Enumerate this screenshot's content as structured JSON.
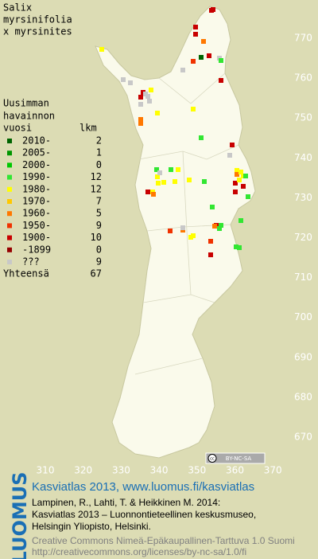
{
  "title": [
    "Salix",
    "myrsinifolia",
    "x myrsinites"
  ],
  "legend": {
    "header": [
      "Uusimman",
      "havainnon",
      "vuosi"
    ],
    "count_header": "lkm",
    "rows": [
      {
        "label": "2010-",
        "count": 2,
        "color": "#006400"
      },
      {
        "label": "2005-",
        "count": 1,
        "color": "#009600"
      },
      {
        "label": "2000-",
        "count": 0,
        "color": "#00c800"
      },
      {
        "label": "1990-",
        "count": 12,
        "color": "#32e632"
      },
      {
        "label": "1980-",
        "count": 12,
        "color": "#ffff00"
      },
      {
        "label": "1970-",
        "count": 7,
        "color": "#ffc800"
      },
      {
        "label": "1960-",
        "count": 5,
        "color": "#ff7800"
      },
      {
        "label": "1950-",
        "count": 9,
        "color": "#f03200"
      },
      {
        "label": "1900-",
        "count": 10,
        "color": "#c80000"
      },
      {
        "label": "-1899",
        "count": 0,
        "color": "#960000"
      },
      {
        "label": "???",
        "count": 9,
        "color": "#c8c8c8"
      }
    ],
    "total_label": "Yhteensä",
    "total": 67
  },
  "x_axis_labels": [
    310,
    320,
    330,
    340,
    350,
    360,
    370
  ],
  "y_axis_labels": [
    770,
    760,
    750,
    740,
    730,
    720,
    710,
    700,
    690,
    680,
    670
  ],
  "license_badge": "BY-NC-SA",
  "logo": "LUOMUS",
  "footer": {
    "link": "Kasviatlas 2013, www.luomus.fi/kasviatlas",
    "citation": [
      "Lampinen, R., Lahti, T. & Heikkinen M. 2014:",
      "Kasviatlas 2013 – Luonnontieteellinen keskusmuseo,",
      "Helsingin Yliopisto, Helsinki."
    ],
    "license": [
      "Creative Commons Nimeä-Epäkaupallinen-Tarttuva 1.0 Suomi",
      "http://creativecommons.org/licenses/by-nc-sa/1.0/fi"
    ]
  }
}
